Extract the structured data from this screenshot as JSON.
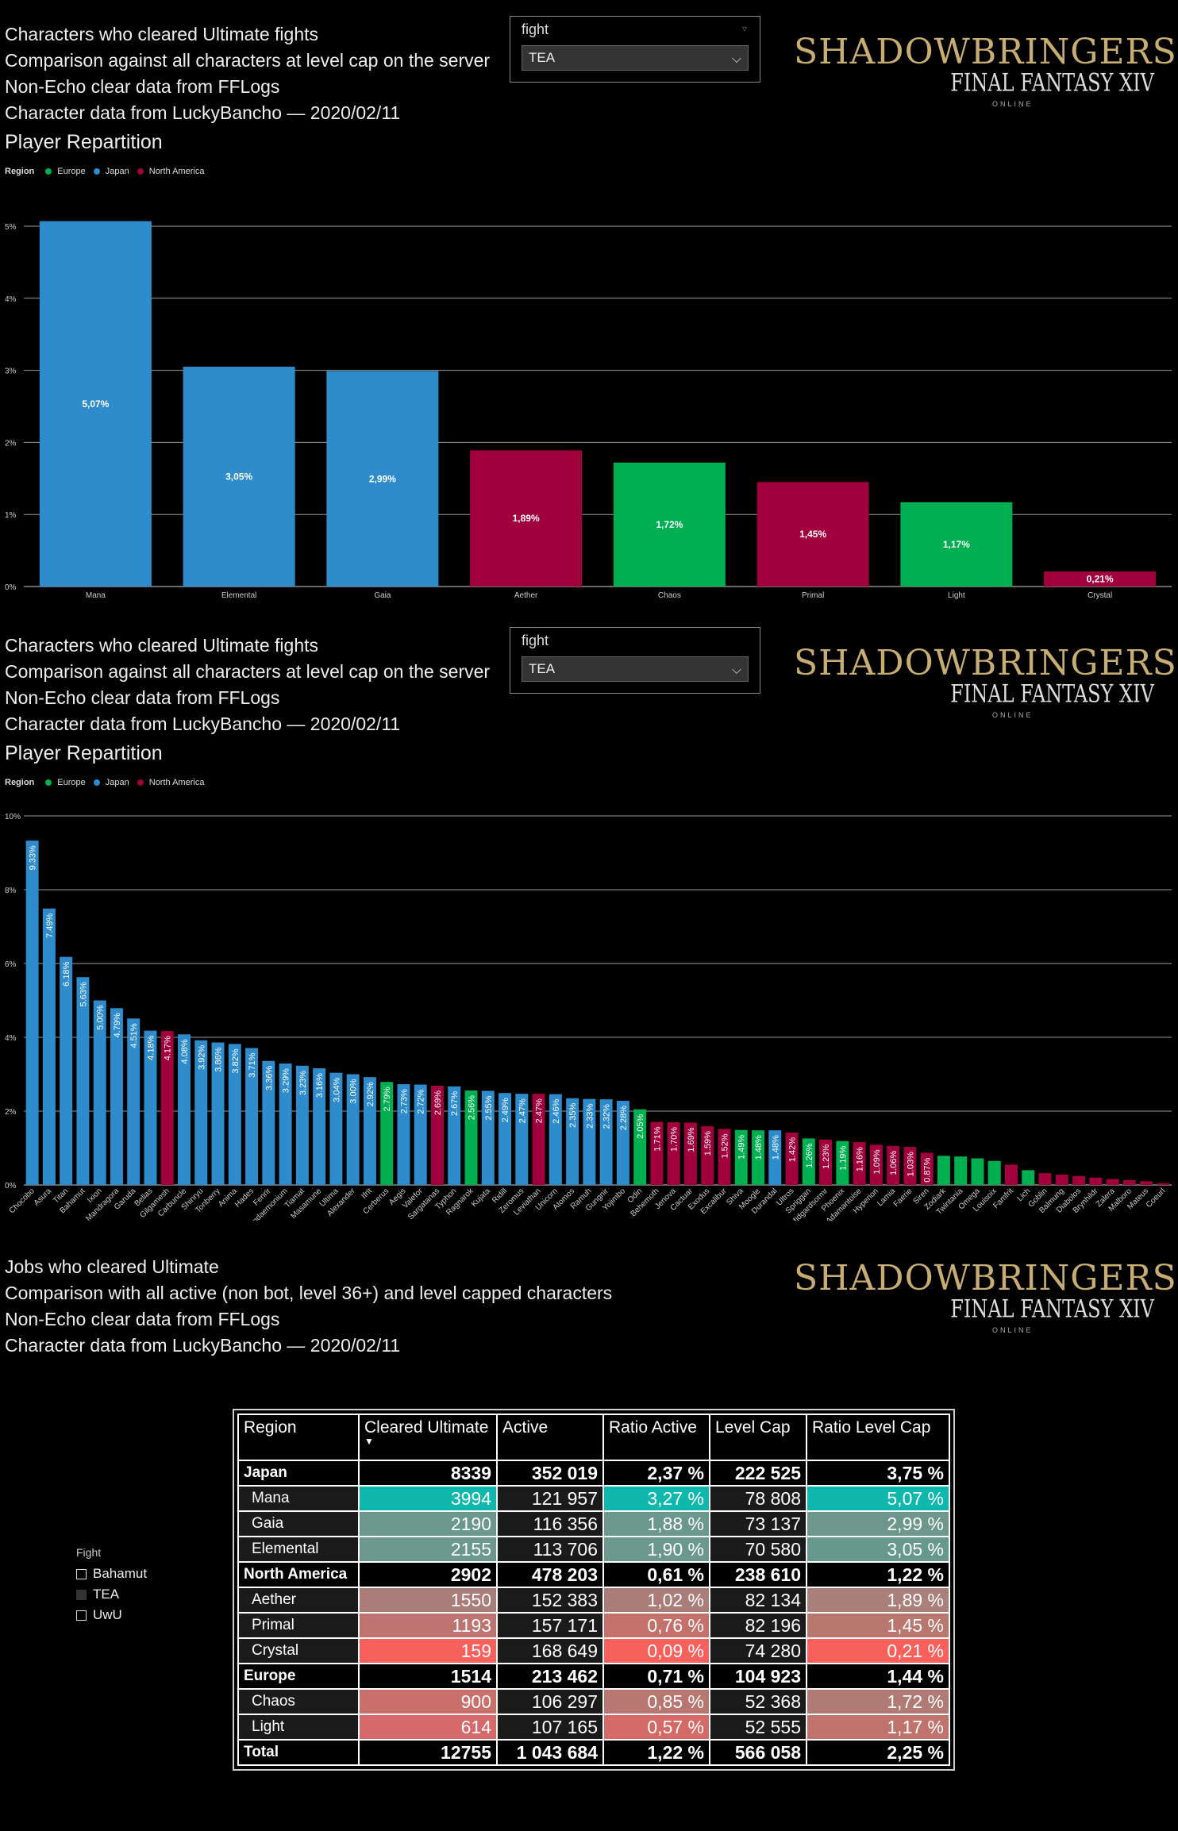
{
  "panels": [
    {
      "header": [
        "Characters who cleared Ultimate fights",
        "Comparison against all characters at level cap on the server",
        "Non-Echo clear data from FFLogs",
        "Character data from LuckyBancho — 2020/02/11"
      ],
      "subtitle": "Player Repartition",
      "slicer": {
        "label": "fight",
        "value": "TEA"
      }
    },
    {
      "header": [
        "Characters who cleared Ultimate fights",
        "Comparison against all characters at level cap on the server",
        "Non-Echo clear data from FFLogs",
        "Character data from LuckyBancho — 2020/02/11"
      ],
      "subtitle": "Player Repartition",
      "slicer": {
        "label": "fight",
        "value": "TEA"
      }
    },
    {
      "header": [
        "Jobs who cleared Ultimate",
        "Comparison with all active (non bot, level 36+) and level capped characters",
        "Non-Echo clear data from FFLogs",
        "Character data from LuckyBancho — 2020/02/11"
      ]
    }
  ],
  "logo": {
    "line1": "SHADOWBRINGERS",
    "line2": "FINAL FANTASY XIV",
    "line3": "ONLINE"
  },
  "legend": {
    "title": "Region",
    "items": [
      {
        "name": "Europe",
        "color": "#00b050"
      },
      {
        "name": "Japan",
        "color": "#2f8ccc"
      },
      {
        "name": "North America",
        "color": "#a0003c"
      }
    ]
  },
  "chart_data": [
    {
      "type": "bar",
      "title": "Player Repartition",
      "ylim": [
        0,
        5
      ],
      "yticks": [
        "0%",
        "1%",
        "2%",
        "3%",
        "4%",
        "5%"
      ],
      "categories": [
        "Mana",
        "Elemental",
        "Gaia",
        "Aether",
        "Chaos",
        "Primal",
        "Light",
        "Crystal"
      ],
      "values": [
        5.07,
        3.05,
        2.99,
        1.89,
        1.72,
        1.45,
        1.17,
        0.21
      ],
      "labels": [
        "5,07%",
        "3,05%",
        "2,99%",
        "1,89%",
        "1,72%",
        "1,45%",
        "1,17%",
        "0,21%"
      ],
      "regions": [
        "Japan",
        "Japan",
        "Japan",
        "North America",
        "Europe",
        "North America",
        "Europe",
        "North America"
      ]
    },
    {
      "type": "bar",
      "title": "Player Repartition",
      "ylim": [
        0,
        10
      ],
      "yticks": [
        "0%",
        "2%",
        "4%",
        "6%",
        "8%",
        "10%"
      ],
      "categories": [
        "Chocobo",
        "Asura",
        "Titan",
        "Bahamut",
        "Ixion",
        "Mandragora",
        "Garuda",
        "Belias",
        "Gilgamesh",
        "Carbuncle",
        "Shinryu",
        "Tonberry",
        "Anima",
        "Hades",
        "Fenrir",
        "Pandaemonium",
        "Tiamat",
        "Masamune",
        "Ultima",
        "Alexander",
        "Ifrit",
        "Cerberus",
        "Aegis",
        "Valefor",
        "Sargatanas",
        "Typhon",
        "Ragnarok",
        "Kujata",
        "Ridill",
        "Zeromus",
        "Leviathan",
        "Unicorn",
        "Atomos",
        "Ramuh",
        "Gungnir",
        "Yojimbo",
        "Odin",
        "Behemoth",
        "Jenova",
        "Cactuar",
        "Exodus",
        "Excalibur",
        "Shiva",
        "Moogle",
        "Durandal",
        "Ultros",
        "Spriggan",
        "Midgardsormr",
        "Phoenix",
        "Adamantoise",
        "Hyperion",
        "Lamia",
        "Faerie",
        "Siren",
        "Zodiark",
        "Twintania",
        "Omega",
        "Louisoix",
        "Famfrit",
        "Lich",
        "Goblin",
        "Balmung",
        "Diabolos",
        "Brynhildr",
        "Zalera",
        "Malboro",
        "Mateus",
        "Coeurl"
      ],
      "values": [
        9.33,
        7.49,
        6.18,
        5.63,
        5.0,
        4.79,
        4.51,
        4.18,
        4.17,
        4.08,
        3.92,
        3.86,
        3.82,
        3.71,
        3.36,
        3.29,
        3.23,
        3.16,
        3.04,
        3.0,
        2.92,
        2.79,
        2.73,
        2.72,
        2.69,
        2.67,
        2.56,
        2.55,
        2.49,
        2.47,
        2.47,
        2.46,
        2.35,
        2.33,
        2.32,
        2.28,
        2.05,
        1.71,
        1.7,
        1.69,
        1.59,
        1.52,
        1.49,
        1.48,
        1.48,
        1.42,
        1.26,
        1.23,
        1.19,
        1.16,
        1.09,
        1.06,
        1.03,
        0.87,
        0.79,
        0.77,
        0.72,
        0.65,
        0.55,
        0.4,
        0.32,
        0.28,
        0.24,
        0.2,
        0.16,
        0.13,
        0.1,
        0.05
      ],
      "labels": [
        "9.33%",
        "7.49%",
        "6.18%",
        "5.63%",
        "5.00%",
        "4.79%",
        "4.51%",
        "4.18%",
        "4.17%",
        "4.08%",
        "3.92%",
        "3.86%",
        "3.82%",
        "3.71%",
        "3.36%",
        "3.29%",
        "3.23%",
        "3.16%",
        "3.04%",
        "3.00%",
        "2.92%",
        "2.79%",
        "2.73%",
        "2.72%",
        "2.69%",
        "2.67%",
        "2.56%",
        "2.55%",
        "2.49%",
        "2.47%",
        "2.47%",
        "2.46%",
        "2.35%",
        "2.33%",
        "2.32%",
        "2.28%",
        "2.05%",
        "1.71%",
        "1.70%",
        "1.69%",
        "1.59%",
        "1.52%",
        "1.49%",
        "1.48%",
        "1.48%",
        "1.42%",
        "1.26%",
        "1.23%",
        "1.19%",
        "1.16%",
        "1.09%",
        "1.06%",
        "1.03%",
        "0.87%",
        "",
        "",
        "",
        "",
        "",
        "",
        "",
        "",
        "",
        "",
        "",
        "",
        "",
        ""
      ],
      "regions": [
        "Japan",
        "Japan",
        "Japan",
        "Japan",
        "Japan",
        "Japan",
        "Japan",
        "Japan",
        "North America",
        "Japan",
        "Japan",
        "Japan",
        "Japan",
        "Japan",
        "Japan",
        "Japan",
        "Japan",
        "Japan",
        "Japan",
        "Japan",
        "Japan",
        "Europe",
        "Japan",
        "Japan",
        "North America",
        "Japan",
        "Europe",
        "Japan",
        "Japan",
        "Japan",
        "North America",
        "Japan",
        "Japan",
        "Japan",
        "Japan",
        "Japan",
        "Europe",
        "North America",
        "North America",
        "North America",
        "North America",
        "North America",
        "Europe",
        "Europe",
        "Japan",
        "North America",
        "Europe",
        "North America",
        "Europe",
        "North America",
        "North America",
        "North America",
        "North America",
        "North America",
        "Europe",
        "Europe",
        "Europe",
        "Europe",
        "North America",
        "Europe",
        "North America",
        "North America",
        "North America",
        "North America",
        "North America",
        "North America",
        "North America",
        "North America"
      ]
    },
    {
      "type": "table",
      "columns": [
        "Region",
        "Cleared Ultimate",
        "Active",
        "Ratio Active",
        "Level Cap",
        "Ratio Level Cap"
      ],
      "rows": [
        {
          "kind": "group",
          "cells": [
            "Japan",
            "8339",
            "352 019",
            "2,37 %",
            "222 525",
            "3,75 %"
          ]
        },
        {
          "kind": "server",
          "cells": [
            "Mana",
            "3994",
            "121 957",
            "3,27 %",
            "78 808",
            "5,07 %"
          ],
          "shade": [
            "#0fb7ad",
            "#1b1b1b",
            "#0fb7ad",
            "#1b1b1b",
            "#0fb7ad"
          ]
        },
        {
          "kind": "server",
          "cells": [
            "Gaia",
            "2190",
            "116 356",
            "1,88 %",
            "73 137",
            "2,99 %"
          ],
          "shade": [
            "#6b978d",
            "#1b1b1b",
            "#6b978d",
            "#1b1b1b",
            "#6d978a"
          ]
        },
        {
          "kind": "server",
          "cells": [
            "Elemental",
            "2155",
            "113 706",
            "1,90 %",
            "70 580",
            "3,05 %"
          ],
          "shade": [
            "#6b978d",
            "#1b1b1b",
            "#6b978d",
            "#1b1b1b",
            "#66998c"
          ]
        },
        {
          "kind": "group",
          "cells": [
            "North America",
            "2902",
            "478 203",
            "0,61 %",
            "238 610",
            "1,22 %"
          ]
        },
        {
          "kind": "server",
          "cells": [
            "Aether",
            "1550",
            "152 383",
            "1,02 %",
            "82 134",
            "1,89 %"
          ],
          "shade": [
            "#a87d7a",
            "#1b1b1b",
            "#aa7d79",
            "#1b1b1b",
            "#a9807a"
          ]
        },
        {
          "kind": "server",
          "cells": [
            "Primal",
            "1193",
            "157 171",
            "0,76 %",
            "82 196",
            "1,45 %"
          ],
          "shade": [
            "#bd7470",
            "#1b1b1b",
            "#c4716c",
            "#1b1b1b",
            "#b9776f"
          ]
        },
        {
          "kind": "server",
          "cells": [
            "Crystal",
            "159",
            "168 649",
            "0,09 %",
            "74 280",
            "0,21 %"
          ],
          "shade": [
            "#f8605c",
            "#1b1b1b",
            "#f8605c",
            "#1b1b1b",
            "#f8605c"
          ]
        },
        {
          "kind": "group",
          "cells": [
            "Europe",
            "1514",
            "213 462",
            "0,71 %",
            "104 923",
            "1,44 %"
          ]
        },
        {
          "kind": "server",
          "cells": [
            "Chaos",
            "900",
            "106 297",
            "0,85 %",
            "52 368",
            "1,72 %"
          ],
          "shade": [
            "#c9706b",
            "#1b1b1b",
            "#b7766f",
            "#1b1b1b",
            "#b07b74"
          ]
        },
        {
          "kind": "server",
          "cells": [
            "Light",
            "614",
            "107 165",
            "0,57 %",
            "52 555",
            "1,17 %"
          ],
          "shade": [
            "#d6696a",
            "#1b1b1b",
            "#d36a66",
            "#1b1b1b",
            "#c0736d"
          ]
        },
        {
          "kind": "total",
          "cells": [
            "Total",
            "12755",
            "1 043 684",
            "1,22 %",
            "566 058",
            "2,25 %"
          ]
        }
      ]
    }
  ],
  "fight_filter": {
    "title": "Fight",
    "options": [
      {
        "label": "Bahamut",
        "checked": false
      },
      {
        "label": "TEA",
        "checked": true
      },
      {
        "label": "UwU",
        "checked": false
      }
    ]
  },
  "colors": {
    "Europe": "#00b050",
    "Japan": "#2f8ccc",
    "North America": "#a0003c",
    "gridline": "#9a9a9a",
    "axis": "#cfcfcf"
  }
}
